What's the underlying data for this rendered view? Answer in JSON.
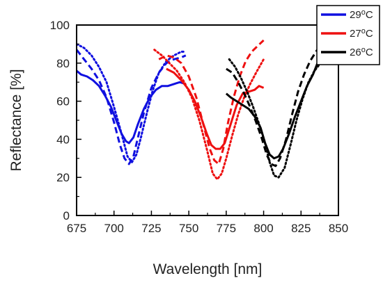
{
  "chart_data": {
    "type": "line",
    "title": "",
    "xlabel": "Wavelength [nm]",
    "ylabel": "Reflectance [%]",
    "xlim": [
      675,
      850
    ],
    "ylim": [
      0,
      100
    ],
    "xticks": [
      675,
      700,
      725,
      750,
      775,
      800,
      825,
      850
    ],
    "yticks": [
      0,
      20,
      40,
      60,
      80,
      100
    ],
    "grid": false,
    "legend": {
      "placement": "top-right",
      "entries": [
        {
          "label": "29°C",
          "temp": "29",
          "unit": "°C",
          "color": "#1010e0"
        },
        {
          "label": "27°C",
          "temp": "27",
          "unit": "°C",
          "color": "#ee1010"
        },
        {
          "label": "26°C",
          "temp": "26",
          "unit": "°C",
          "color": "#000000"
        }
      ]
    },
    "series": [
      {
        "group": "29°C",
        "style": "solid",
        "color": "#1010e0",
        "x": [
          675,
          678,
          682,
          686,
          690,
          694,
          698,
          702,
          705,
          708,
          710,
          713,
          716,
          720,
          724,
          728,
          732,
          736,
          740,
          744,
          748
        ],
        "y": [
          76,
          74,
          73,
          71,
          68,
          63,
          57,
          49,
          43,
          39,
          38,
          41,
          48,
          56,
          62,
          66,
          68,
          68,
          69,
          70,
          69
        ]
      },
      {
        "group": "29°C",
        "style": "dashed",
        "color": "#1010e0",
        "x": [
          675,
          680,
          685,
          690,
          695,
          700,
          704,
          707,
          710,
          713,
          716,
          720,
          725,
          730,
          735,
          740,
          745,
          748
        ],
        "y": [
          87,
          82,
          77,
          71,
          62,
          49,
          37,
          30,
          27,
          31,
          41,
          54,
          67,
          75,
          80,
          82,
          83,
          84
        ]
      },
      {
        "group": "29°C",
        "style": "dotted",
        "color": "#1010e0",
        "x": [
          675,
          680,
          685,
          690,
          695,
          700,
          705,
          709,
          712,
          715,
          718,
          722,
          726,
          730,
          735,
          740,
          745,
          748
        ],
        "y": [
          90,
          88,
          84,
          78,
          70,
          57,
          43,
          31,
          28,
          32,
          41,
          54,
          66,
          75,
          81,
          84,
          86,
          86
        ]
      },
      {
        "group": "27°C",
        "style": "solid",
        "color": "#ee1010",
        "x": [
          735,
          740,
          745,
          750,
          754,
          758,
          762,
          765,
          768,
          771,
          774,
          778,
          782,
          786,
          790,
          794,
          797,
          800
        ],
        "y": [
          77,
          75,
          71,
          66,
          60,
          52,
          43,
          37,
          35,
          35,
          38,
          48,
          58,
          64,
          65,
          66,
          68,
          67
        ]
      },
      {
        "group": "27°C",
        "style": "dashed",
        "color": "#ee1010",
        "x": [
          730,
          735,
          740,
          745,
          750,
          755,
          760,
          764,
          767,
          770,
          773,
          776,
          780,
          784,
          788,
          792,
          796,
          800
        ],
        "y": [
          82,
          84,
          83,
          80,
          73,
          62,
          47,
          35,
          29,
          27,
          35,
          48,
          62,
          73,
          81,
          86,
          89,
          92
        ]
      },
      {
        "group": "27°C",
        "style": "dotted",
        "color": "#ee1010",
        "x": [
          727,
          732,
          737,
          742,
          747,
          752,
          757,
          762,
          766,
          769,
          772,
          775,
          779,
          783,
          787,
          791,
          795,
          800
        ],
        "y": [
          87,
          84,
          80,
          76,
          70,
          62,
          50,
          35,
          22,
          19,
          22,
          30,
          42,
          53,
          62,
          69,
          75,
          82
        ]
      },
      {
        "group": "26°C",
        "style": "solid",
        "color": "#000000",
        "x": [
          775,
          778,
          782,
          786,
          790,
          794,
          798,
          801,
          804,
          807,
          810,
          813,
          817,
          821,
          825,
          829,
          833,
          836,
          840
        ],
        "y": [
          64,
          62,
          60,
          58,
          56,
          52,
          46,
          38,
          32,
          30,
          31,
          35,
          43,
          52,
          60,
          68,
          74,
          80,
          84
        ]
      },
      {
        "group": "26°C",
        "style": "dashed",
        "color": "#000000",
        "x": [
          775,
          779,
          783,
          787,
          791,
          795,
          799,
          802,
          805,
          808,
          811,
          815,
          819,
          823,
          827,
          831,
          835,
          840
        ],
        "y": [
          77,
          75,
          70,
          64,
          57,
          49,
          40,
          32,
          27,
          26,
          30,
          40,
          53,
          65,
          74,
          81,
          86,
          92
        ]
      },
      {
        "group": "26°C",
        "style": "dotted",
        "color": "#000000",
        "x": [
          777,
          781,
          785,
          789,
          793,
          797,
          801,
          804,
          807,
          810,
          814,
          818,
          822,
          826,
          830,
          834,
          838,
          841
        ],
        "y": [
          82,
          78,
          72,
          65,
          57,
          48,
          38,
          28,
          21,
          20,
          25,
          37,
          50,
          61,
          70,
          76,
          80,
          84
        ]
      }
    ]
  }
}
